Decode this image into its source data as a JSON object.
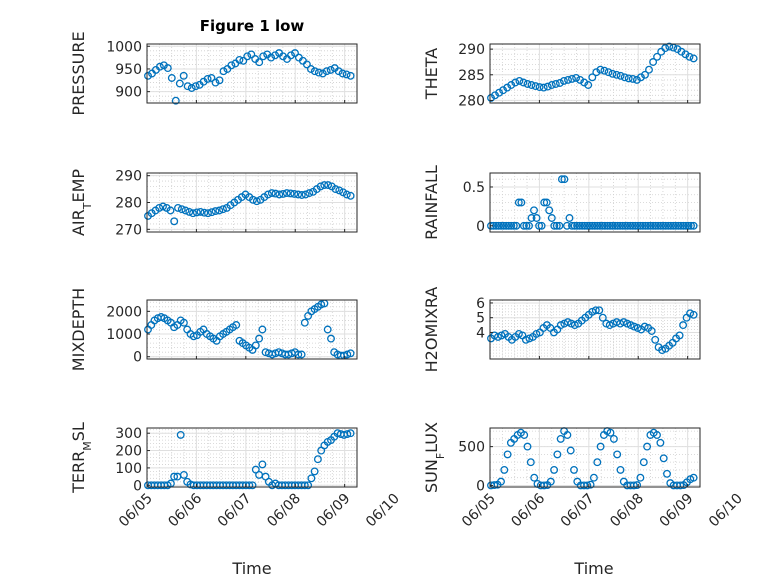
{
  "title": "Figure 1 low",
  "color": "#0072BD",
  "chart_data": [
    {
      "type": "scatter",
      "ylabel": "PRESSURE",
      "ylim": [
        875,
        1005
      ],
      "yticks": [
        900,
        950,
        1000
      ],
      "xlim": [
        0,
        4.25
      ],
      "grid": true,
      "values": [
        935,
        940,
        948,
        955,
        958,
        952,
        930,
        880,
        918,
        935,
        912,
        908,
        912,
        915,
        922,
        928,
        930,
        920,
        925,
        945,
        950,
        958,
        962,
        970,
        968,
        978,
        982,
        972,
        965,
        978,
        982,
        975,
        980,
        985,
        978,
        972,
        980,
        985,
        975,
        968,
        960,
        950,
        945,
        942,
        940,
        945,
        948,
        952,
        945,
        940,
        938,
        935
      ]
    },
    {
      "type": "scatter",
      "ylabel": "THETA",
      "ylim": [
        279.5,
        291
      ],
      "yticks": [
        280,
        285,
        290
      ],
      "xlim": [
        0,
        4.25
      ],
      "grid": true,
      "values": [
        280.5,
        281,
        281.5,
        282,
        282.5,
        283,
        283.5,
        283.8,
        283.5,
        283.2,
        283,
        282.8,
        282.6,
        282.5,
        282.7,
        283,
        283.2,
        283.4,
        283.8,
        284,
        284.2,
        284.4,
        284,
        283.5,
        283,
        284.5,
        285.5,
        286,
        285.8,
        285.5,
        285.2,
        285,
        284.8,
        284.5,
        284.3,
        284.2,
        284,
        284.5,
        285,
        286,
        287.5,
        288.5,
        289.5,
        290.2,
        290.5,
        290.3,
        290,
        289.5,
        289,
        288.5,
        288.2
      ]
    },
    {
      "type": "scatter",
      "ylabel": "AIR_TEMP",
      "ylim": [
        269,
        291
      ],
      "yticks": [
        270,
        280,
        290
      ],
      "xlim": [
        0,
        4.25
      ],
      "grid": true,
      "values": [
        275,
        276,
        277,
        278,
        278.5,
        278,
        277,
        273,
        278,
        277.5,
        277,
        276.5,
        276,
        276.3,
        276.5,
        276.2,
        276,
        276.4,
        276.8,
        277,
        277.5,
        278,
        279,
        280,
        281,
        282,
        283,
        282,
        281,
        280.5,
        281,
        282,
        283,
        283.5,
        283.3,
        283,
        283.2,
        283.5,
        283.4,
        283.2,
        283,
        282.8,
        283,
        283.5,
        284,
        285,
        286,
        286.5,
        286.5,
        286,
        285,
        284.5,
        283.8,
        283,
        282.5
      ]
    },
    {
      "type": "scatter",
      "ylabel": "RAINFALL",
      "ylim": [
        -0.08,
        0.68
      ],
      "yticks": [
        0,
        0.5
      ],
      "xlim": [
        0,
        4.25
      ],
      "grid": true,
      "values": [
        0,
        0,
        0,
        0,
        0,
        0,
        0,
        0,
        0,
        0,
        0,
        0.3,
        0.3,
        0,
        0,
        0,
        0.1,
        0.2,
        0.1,
        0,
        0,
        0.3,
        0.3,
        0.2,
        0.1,
        0,
        0,
        0,
        0.6,
        0.6,
        0,
        0.1,
        0,
        0,
        0,
        0,
        0,
        0,
        0,
        0,
        0,
        0,
        0,
        0,
        0,
        0,
        0,
        0,
        0,
        0,
        0,
        0,
        0,
        0,
        0,
        0,
        0,
        0,
        0,
        0,
        0,
        0,
        0,
        0,
        0,
        0,
        0,
        0,
        0,
        0,
        0,
        0,
        0,
        0,
        0,
        0,
        0,
        0,
        0,
        0,
        0
      ]
    },
    {
      "type": "scatter",
      "ylabel": "MIXDEPTH",
      "ylim": [
        -100,
        2500
      ],
      "yticks": [
        0,
        1000,
        2000
      ],
      "xlim": [
        0,
        4.25
      ],
      "grid": true,
      "values": [
        1200,
        1400,
        1600,
        1700,
        1750,
        1700,
        1600,
        1500,
        1300,
        1400,
        1600,
        1500,
        1200,
        1000,
        900,
        950,
        1100,
        1200,
        1000,
        900,
        800,
        700,
        900,
        1000,
        1100,
        1200,
        1300,
        1400,
        700,
        600,
        500,
        400,
        300,
        500,
        800,
        1200,
        200,
        150,
        100,
        150,
        200,
        150,
        100,
        100,
        150,
        200,
        100,
        100,
        1500,
        1800,
        2000,
        2100,
        2200,
        2300,
        2350,
        1200,
        800,
        200,
        100,
        50,
        50,
        100,
        150
      ]
    },
    {
      "type": "scatter",
      "ylabel": "H2OMIXRA",
      "ylim": [
        2.2,
        6.2
      ],
      "yticks": [
        4,
        5,
        6
      ],
      "xlim": [
        0,
        4.25
      ],
      "grid": true,
      "values": [
        3.6,
        3.8,
        3.7,
        3.8,
        3.9,
        3.7,
        3.5,
        3.7,
        3.9,
        3.8,
        3.5,
        3.6,
        3.7,
        3.9,
        4.0,
        4.3,
        4.5,
        4.3,
        4.0,
        4.2,
        4.5,
        4.6,
        4.7,
        4.6,
        4.5,
        4.6,
        4.8,
        5.0,
        5.2,
        5.4,
        5.5,
        5.5,
        5.0,
        4.6,
        4.5,
        4.6,
        4.7,
        4.6,
        4.7,
        4.6,
        4.5,
        4.4,
        4.3,
        4.2,
        4.4,
        4.3,
        4.1,
        3.5,
        3.0,
        2.8,
        2.9,
        3.1,
        3.3,
        3.6,
        3.8,
        4.5,
        5.0,
        5.3,
        5.2
      ]
    },
    {
      "type": "scatter",
      "ylabel": "TERR_MSL",
      "ylim": [
        -10,
        330
      ],
      "yticks": [
        0,
        100,
        200,
        300
      ],
      "xlim": [
        0,
        4.25
      ],
      "grid": true,
      "values": [
        0,
        0,
        0,
        0,
        0,
        0,
        0,
        10,
        50,
        50,
        290,
        60,
        20,
        5,
        0,
        0,
        0,
        0,
        0,
        0,
        0,
        0,
        0,
        0,
        0,
        0,
        0,
        0,
        0,
        0,
        0,
        0,
        0,
        90,
        60,
        120,
        50,
        20,
        0,
        10,
        0,
        0,
        0,
        0,
        0,
        0,
        0,
        0,
        0,
        0,
        40,
        80,
        150,
        200,
        230,
        250,
        260,
        280,
        300,
        295,
        290,
        295,
        300
      ]
    },
    {
      "type": "scatter",
      "ylabel": "SUN_FLUX",
      "ylim": [
        -20,
        740
      ],
      "yticks": [
        0,
        500
      ],
      "xlim": [
        0,
        4.25
      ],
      "grid": true,
      "values": [
        0,
        5,
        10,
        50,
        200,
        400,
        550,
        600,
        650,
        680,
        650,
        500,
        300,
        100,
        20,
        0,
        0,
        5,
        50,
        200,
        400,
        600,
        700,
        650,
        450,
        200,
        50,
        0,
        0,
        0,
        10,
        100,
        300,
        500,
        650,
        700,
        680,
        600,
        400,
        200,
        50,
        0,
        0,
        0,
        5,
        100,
        300,
        500,
        650,
        680,
        650,
        550,
        350,
        150,
        30,
        0,
        0,
        0,
        5,
        40,
        80,
        100
      ]
    }
  ],
  "xticks": [
    "06/05",
    "06/06",
    "06/07",
    "06/08",
    "06/09",
    "06/10"
  ],
  "xlabel": "Time",
  "ylabels_display": [
    {
      "main": "PRESSURE"
    },
    {
      "main": "THETA"
    },
    {
      "main": "AIR",
      "sub": "T",
      "tail": "EMP"
    },
    {
      "main": "RAINFALL"
    },
    {
      "main": "MIXDEPTH"
    },
    {
      "main": "H2OMIXRA"
    },
    {
      "main": "TERR",
      "sub": "M",
      "tail": "SL"
    },
    {
      "main": "SUN",
      "sub": "F",
      "tail": "LUX"
    }
  ]
}
